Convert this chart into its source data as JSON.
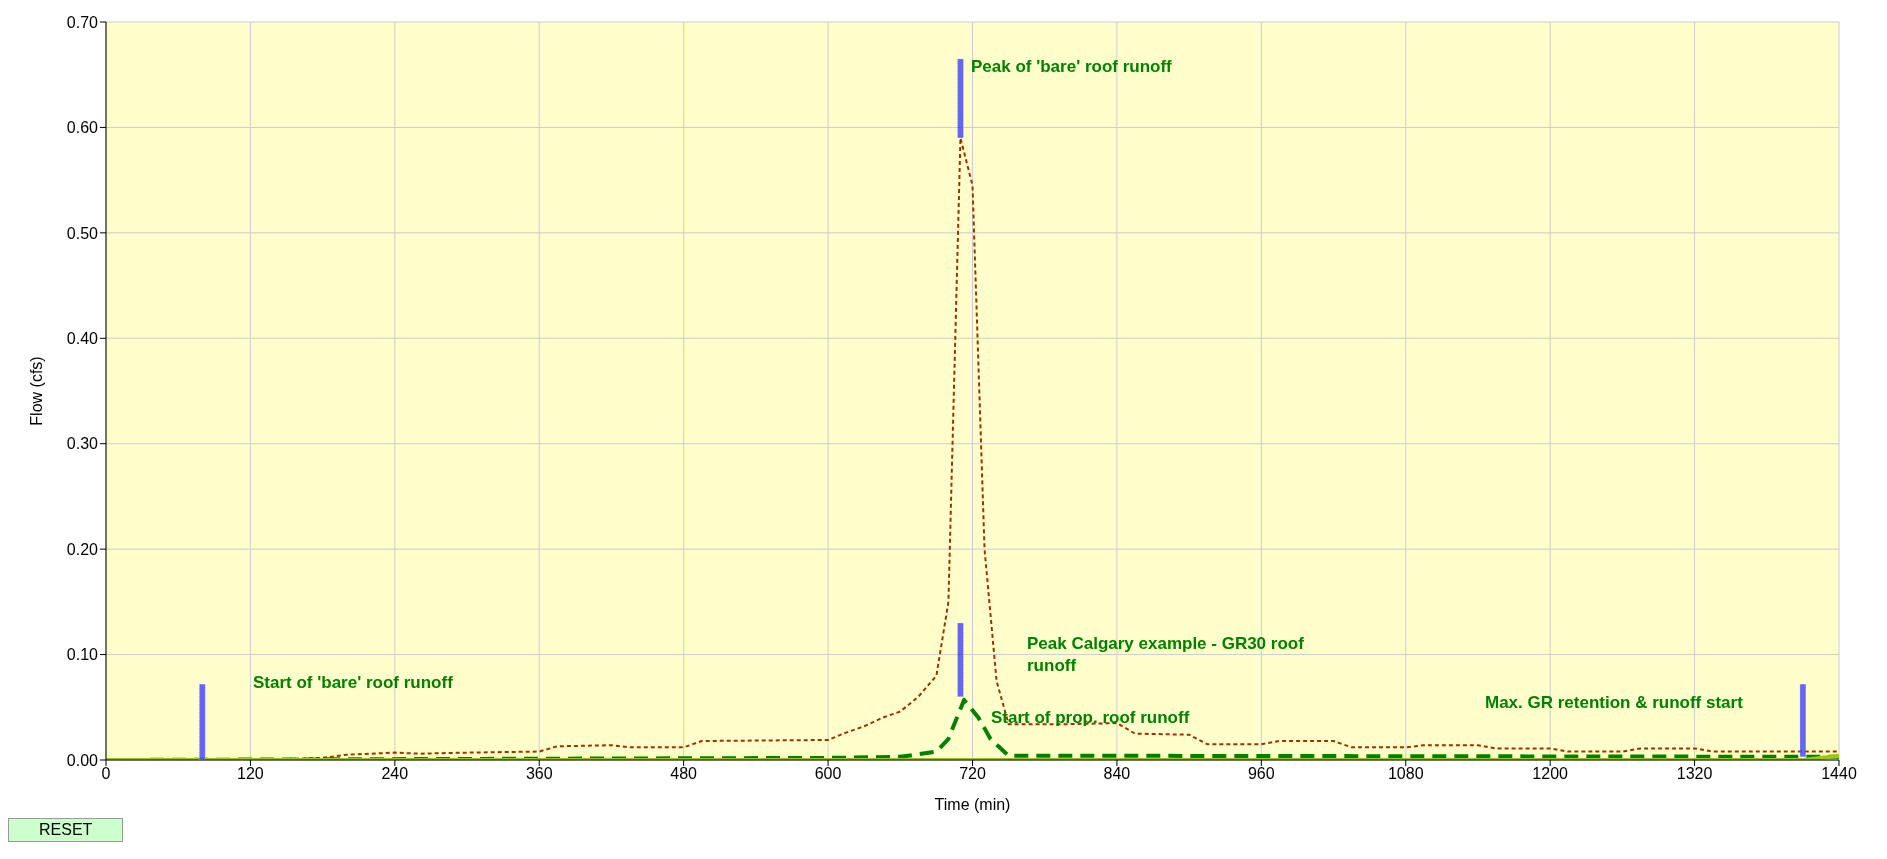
{
  "chart_data": {
    "type": "line",
    "xlabel": "Time (min)",
    "ylabel": "Flow (cfs)",
    "xlim": [
      0,
      1440
    ],
    "xticks": [
      0,
      120,
      240,
      360,
      480,
      600,
      720,
      840,
      960,
      1080,
      1200,
      1320,
      1440
    ],
    "ylim": [
      0,
      0.7
    ],
    "yticks": [
      {
        "value": 0,
        "label": "0.00"
      },
      {
        "value": 0.1,
        "label": "0.10"
      },
      {
        "value": 0.2,
        "label": "0.20"
      },
      {
        "value": 0.3,
        "label": "0.30"
      },
      {
        "value": 0.4,
        "label": "0.40"
      },
      {
        "value": 0.5,
        "label": "0.50"
      },
      {
        "value": 0.6,
        "label": "0.60"
      },
      {
        "value": 0.7,
        "label": "0.70"
      }
    ],
    "grid": true,
    "marker": "none",
    "series": [
      {
        "color": "#993300",
        "line_style": "dotted",
        "x": [
          0,
          120,
          180,
          200,
          240,
          260,
          300,
          360,
          375,
          420,
          435,
          480,
          495,
          600,
          615,
          630,
          645,
          660,
          675,
          690,
          700,
          710,
          720,
          730,
          740,
          750,
          800,
          840,
          855,
          900,
          915,
          960,
          975,
          1020,
          1035,
          1080,
          1095,
          1140,
          1155,
          1200,
          1215,
          1260,
          1275,
          1320,
          1335,
          1440
        ],
        "values": [
          0,
          0,
          0.002,
          0.005,
          0.007,
          0.006,
          0.007,
          0.008,
          0.013,
          0.014,
          0.012,
          0.012,
          0.018,
          0.019,
          0.026,
          0.032,
          0.04,
          0.046,
          0.06,
          0.08,
          0.15,
          0.59,
          0.545,
          0.2,
          0.075,
          0.034,
          0.034,
          0.035,
          0.025,
          0.024,
          0.015,
          0.015,
          0.018,
          0.018,
          0.012,
          0.012,
          0.014,
          0.014,
          0.011,
          0.011,
          0.008,
          0.008,
          0.011,
          0.011,
          0.008,
          0.008
        ]
      },
      {
        "color": "#008000",
        "line_style": "dashed",
        "x": [
          0,
          600,
          660,
          690,
          700,
          713,
          725,
          735,
          750,
          840,
          1440
        ],
        "values": [
          0,
          0.002,
          0.003,
          0.008,
          0.02,
          0.057,
          0.04,
          0.02,
          0.004,
          0.004,
          0.003
        ]
      },
      {
        "color": "#99cc00",
        "line_style": "solid",
        "x": [
          0,
          1410,
          1440
        ],
        "values": [
          0,
          0,
          0.004
        ]
      },
      {
        "type": "bar",
        "color": "#3333ff",
        "x": [
          80,
          710,
          1410
        ],
        "base": [
          0,
          0.59,
          0.003
        ],
        "values": [
          0.072,
          0.075,
          0.069
        ]
      },
      {
        "type": "bar",
        "color": "#3333ff",
        "x": [
          710
        ],
        "base": [
          0.06
        ],
        "values": [
          0.07
        ]
      }
    ],
    "annotations": [
      "Start of 'bare' roof runoff",
      "Peak of 'bare' roof runoff",
      "Peak Calgary example - GR30 roof runoff",
      "Start of prop. roof runoff",
      "Max. GR retention & runoff start",
      "RESET"
    ]
  }
}
